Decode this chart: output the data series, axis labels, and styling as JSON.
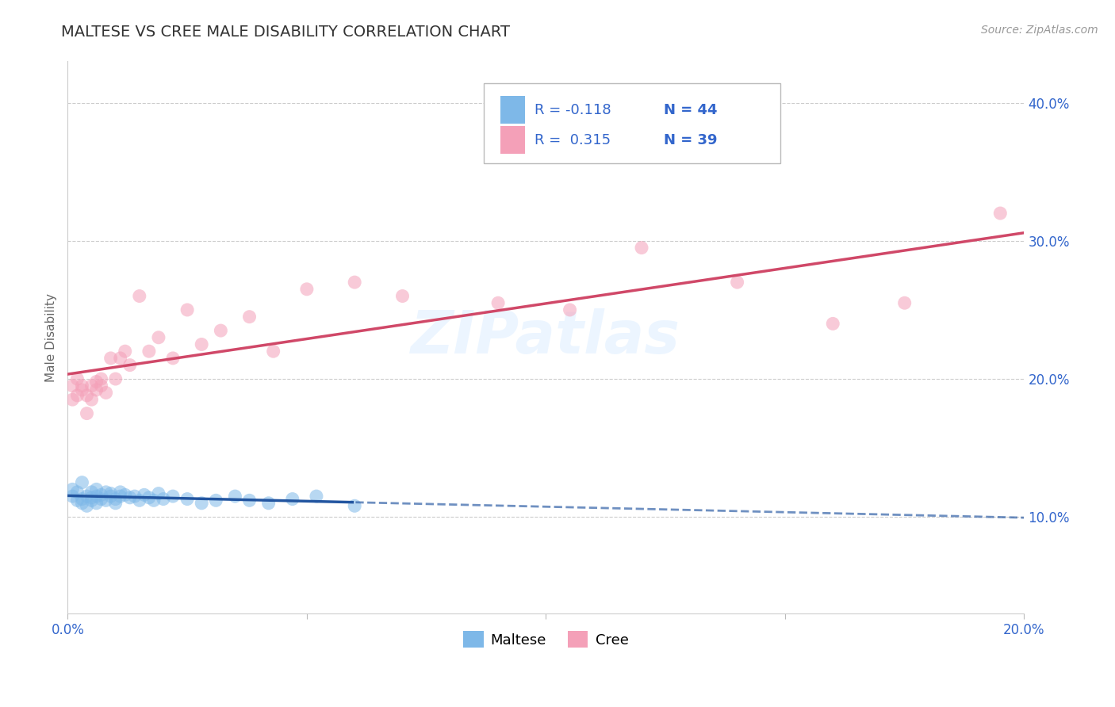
{
  "title": "MALTESE VS CREE MALE DISABILITY CORRELATION CHART",
  "source": "Source: ZipAtlas.com",
  "ylabel": "Male Disability",
  "xlim": [
    0.0,
    0.2
  ],
  "ylim": [
    0.03,
    0.43
  ],
  "yticks": [
    0.1,
    0.2,
    0.3,
    0.4
  ],
  "ytick_labels": [
    "10.0%",
    "20.0%",
    "30.0%",
    "40.0%"
  ],
  "xticks": [
    0.0,
    0.05,
    0.1,
    0.15,
    0.2
  ],
  "xtick_labels_show": [
    "0.0%",
    "20.0%"
  ],
  "maltese_color": "#7EB8E8",
  "cree_color": "#F4A0B8",
  "maltese_line_color": "#2255A0",
  "cree_line_color": "#D04868",
  "background_color": "#FFFFFF",
  "grid_color": "#CCCCCC",
  "watermark": "ZIPatlas",
  "text_color": "#3366CC",
  "title_color": "#333333",
  "source_color": "#999999",
  "legend_r_maltese": "R = -0.118",
  "legend_n_maltese": "N = 44",
  "legend_r_cree": "R =  0.315",
  "legend_n_cree": "N = 39",
  "maltese_x": [
    0.001,
    0.001,
    0.002,
    0.002,
    0.003,
    0.003,
    0.003,
    0.004,
    0.004,
    0.005,
    0.005,
    0.005,
    0.006,
    0.006,
    0.006,
    0.007,
    0.007,
    0.008,
    0.008,
    0.009,
    0.009,
    0.01,
    0.01,
    0.011,
    0.011,
    0.012,
    0.013,
    0.014,
    0.015,
    0.016,
    0.017,
    0.018,
    0.019,
    0.02,
    0.022,
    0.025,
    0.028,
    0.031,
    0.035,
    0.038,
    0.042,
    0.047,
    0.052,
    0.06
  ],
  "maltese_y": [
    0.12,
    0.115,
    0.118,
    0.112,
    0.125,
    0.11,
    0.113,
    0.115,
    0.108,
    0.112,
    0.118,
    0.114,
    0.115,
    0.12,
    0.11,
    0.116,
    0.113,
    0.112,
    0.118,
    0.115,
    0.117,
    0.113,
    0.11,
    0.115,
    0.118,
    0.116,
    0.114,
    0.115,
    0.112,
    0.116,
    0.114,
    0.112,
    0.117,
    0.113,
    0.115,
    0.113,
    0.11,
    0.112,
    0.115,
    0.112,
    0.11,
    0.113,
    0.115,
    0.108
  ],
  "cree_x": [
    0.001,
    0.001,
    0.002,
    0.002,
    0.003,
    0.003,
    0.004,
    0.004,
    0.005,
    0.005,
    0.006,
    0.006,
    0.007,
    0.007,
    0.008,
    0.009,
    0.01,
    0.011,
    0.012,
    0.013,
    0.015,
    0.017,
    0.019,
    0.022,
    0.025,
    0.028,
    0.032,
    0.038,
    0.043,
    0.05,
    0.06,
    0.07,
    0.09,
    0.105,
    0.12,
    0.14,
    0.16,
    0.175,
    0.195
  ],
  "cree_y": [
    0.185,
    0.195,
    0.188,
    0.2,
    0.192,
    0.195,
    0.175,
    0.188,
    0.195,
    0.185,
    0.198,
    0.192,
    0.2,
    0.195,
    0.19,
    0.215,
    0.2,
    0.215,
    0.22,
    0.21,
    0.26,
    0.22,
    0.23,
    0.215,
    0.25,
    0.225,
    0.235,
    0.245,
    0.22,
    0.265,
    0.27,
    0.26,
    0.255,
    0.25,
    0.295,
    0.27,
    0.24,
    0.255,
    0.32
  ],
  "title_fontsize": 14,
  "tick_fontsize": 12,
  "legend_fontsize": 13,
  "ylabel_fontsize": 11
}
